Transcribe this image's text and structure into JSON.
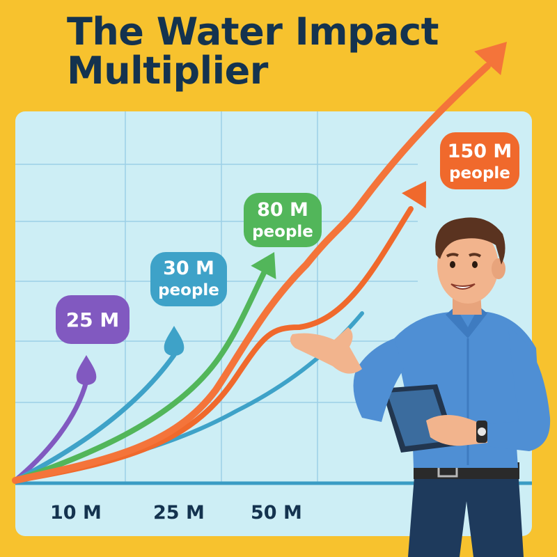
{
  "title": {
    "line1": "The Water Impact",
    "line2": "Multiplier"
  },
  "colors": {
    "background": "#f7c22e",
    "panel": "#cdeef5",
    "grid": "#9ccfe6",
    "baseline": "#3a9cc4",
    "purple": "#8159c0",
    "blue": "#3ea2c8",
    "green": "#52b65a",
    "orange": "#f0692c",
    "big_orange": "#f4743a"
  },
  "chart_data": {
    "type": "line",
    "title": "The Water Impact Multiplier",
    "xlabel": "",
    "ylabel": "",
    "grid": true,
    "x_tick_labels": [
      "10 M",
      "25 M",
      "50 M"
    ],
    "series": [
      {
        "color_key": "purple",
        "end_label": [
          "25 M"
        ],
        "icon": "water-drop-icon"
      },
      {
        "color_key": "blue",
        "end_label": [
          "30 M",
          "people"
        ],
        "icon": "water-drop-icon"
      },
      {
        "color_key": "green",
        "end_label": [
          "80 M",
          "people"
        ],
        "icon": "arrow-icon"
      },
      {
        "color_key": "orange",
        "end_label": [
          "150 M",
          "people"
        ],
        "icon": "arrow-icon"
      },
      {
        "color_key": "big_orange",
        "end_label": [],
        "icon": "arrow-icon"
      }
    ]
  },
  "presenter": {
    "icon": "presenter-with-tablet-icon"
  }
}
